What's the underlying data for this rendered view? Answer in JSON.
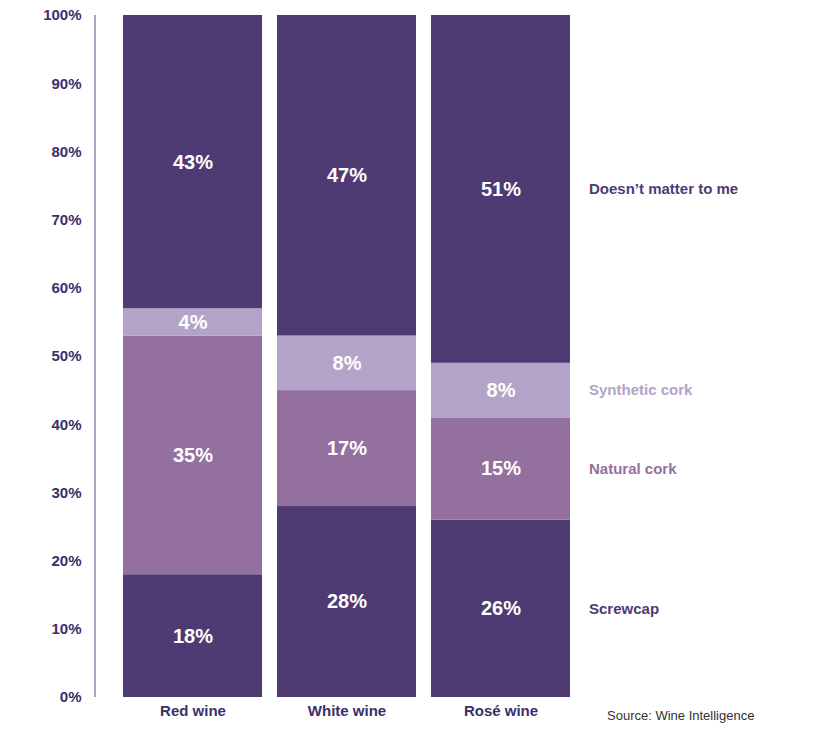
{
  "chart_data": {
    "type": "bar",
    "stacked": true,
    "data_labels": true,
    "legend": "right",
    "caption": "Source: Wine Intelligence",
    "categories": [
      "Red wine",
      "White wine",
      "Rosé wine"
    ],
    "series": [
      {
        "name": "Screwcap",
        "color": "#4f3b73",
        "values": [
          18,
          28,
          26
        ],
        "value_labels": [
          "18%",
          "28%",
          "26%"
        ]
      },
      {
        "name": "Natural cork",
        "color": "#94709f",
        "values": [
          35,
          17,
          15
        ],
        "value_labels": [
          "35%",
          "17%",
          "15%"
        ]
      },
      {
        "name": "Synthetic cork",
        "color": "#b3a3c9",
        "values": [
          4,
          8,
          8
        ],
        "value_labels": [
          "4%",
          "8%",
          "8%"
        ]
      },
      {
        "name": "Doesn’t matter to me",
        "color": "#4f3b73",
        "values": [
          43,
          47,
          51
        ],
        "value_labels": [
          "43%",
          "47%",
          "51%"
        ]
      }
    ],
    "ylim": [
      0,
      100
    ],
    "yticks": [
      {
        "value": 0,
        "label": "0%"
      },
      {
        "value": 10,
        "label": "10%"
      },
      {
        "value": 20,
        "label": "20%"
      },
      {
        "value": 30,
        "label": "30%"
      },
      {
        "value": 40,
        "label": "40%"
      },
      {
        "value": 50,
        "label": "50%"
      },
      {
        "value": 60,
        "label": "60%"
      },
      {
        "value": 70,
        "label": "70%"
      },
      {
        "value": 80,
        "label": "80%"
      },
      {
        "value": 90,
        "label": "90%"
      },
      {
        "value": 100,
        "label": "100%"
      }
    ],
    "grid": false
  }
}
